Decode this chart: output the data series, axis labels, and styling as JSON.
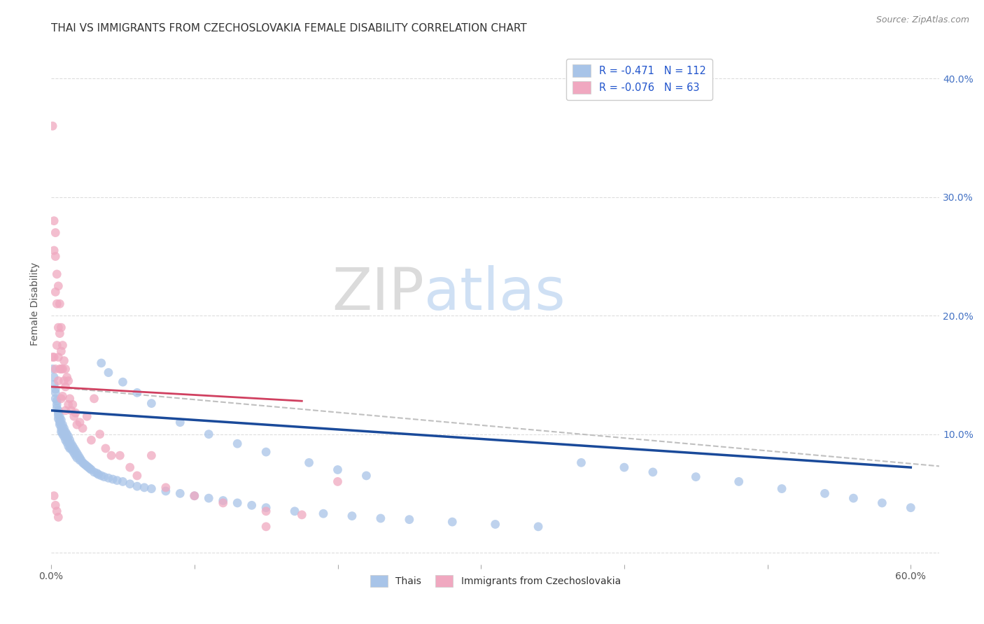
{
  "title": "THAI VS IMMIGRANTS FROM CZECHOSLOVAKIA FEMALE DISABILITY CORRELATION CHART",
  "source": "Source: ZipAtlas.com",
  "ylabel": "Female Disability",
  "xlim": [
    0.0,
    0.62
  ],
  "ylim": [
    -0.01,
    0.43
  ],
  "yticks": [
    0.0,
    0.1,
    0.2,
    0.3,
    0.4
  ],
  "ytick_labels": [
    "",
    "10.0%",
    "20.0%",
    "30.0%",
    "40.0%"
  ],
  "xticks": [
    0.0,
    0.1,
    0.2,
    0.3,
    0.4,
    0.5,
    0.6
  ],
  "xtick_labels": [
    "0.0%",
    "",
    "",
    "",
    "",
    "",
    "60.0%"
  ],
  "legend_blue_label": "R = -0.471   N = 112",
  "legend_pink_label": "R = -0.076   N = 63",
  "legend_bottom_blue": "Thais",
  "legend_bottom_pink": "Immigrants from Czechoslovakia",
  "blue_color": "#a8c4e8",
  "pink_color": "#f0a8c0",
  "trendline_blue_color": "#1a4a9a",
  "trendline_pink_color": "#d04060",
  "trendline_grey_color": "#c0c0c0",
  "watermark_zip": "ZIP",
  "watermark_atlas": "atlas",
  "title_fontsize": 11,
  "axis_label_fontsize": 10,
  "tick_fontsize": 10,
  "thai_x": [
    0.001,
    0.002,
    0.002,
    0.003,
    0.003,
    0.003,
    0.004,
    0.004,
    0.004,
    0.005,
    0.005,
    0.005,
    0.005,
    0.006,
    0.006,
    0.006,
    0.006,
    0.007,
    0.007,
    0.007,
    0.007,
    0.008,
    0.008,
    0.008,
    0.008,
    0.009,
    0.009,
    0.009,
    0.01,
    0.01,
    0.01,
    0.011,
    0.011,
    0.011,
    0.012,
    0.012,
    0.012,
    0.013,
    0.013,
    0.013,
    0.014,
    0.014,
    0.015,
    0.015,
    0.016,
    0.016,
    0.017,
    0.017,
    0.018,
    0.018,
    0.019,
    0.02,
    0.02,
    0.021,
    0.022,
    0.023,
    0.024,
    0.025,
    0.026,
    0.027,
    0.028,
    0.03,
    0.032,
    0.033,
    0.035,
    0.037,
    0.04,
    0.043,
    0.046,
    0.05,
    0.055,
    0.06,
    0.065,
    0.07,
    0.08,
    0.09,
    0.1,
    0.11,
    0.12,
    0.13,
    0.14,
    0.15,
    0.17,
    0.19,
    0.21,
    0.23,
    0.25,
    0.28,
    0.31,
    0.34,
    0.37,
    0.4,
    0.42,
    0.45,
    0.48,
    0.51,
    0.54,
    0.56,
    0.58,
    0.6,
    0.035,
    0.04,
    0.05,
    0.06,
    0.07,
    0.09,
    0.11,
    0.13,
    0.15,
    0.18,
    0.2,
    0.22
  ],
  "thai_y": [
    0.155,
    0.148,
    0.142,
    0.138,
    0.135,
    0.13,
    0.128,
    0.125,
    0.122,
    0.12,
    0.118,
    0.116,
    0.113,
    0.115,
    0.112,
    0.11,
    0.108,
    0.112,
    0.108,
    0.105,
    0.102,
    0.108,
    0.105,
    0.102,
    0.1,
    0.105,
    0.102,
    0.098,
    0.102,
    0.098,
    0.095,
    0.1,
    0.096,
    0.093,
    0.098,
    0.094,
    0.09,
    0.095,
    0.091,
    0.088,
    0.092,
    0.088,
    0.09,
    0.086,
    0.088,
    0.084,
    0.086,
    0.082,
    0.084,
    0.08,
    0.082,
    0.08,
    0.078,
    0.078,
    0.076,
    0.075,
    0.074,
    0.073,
    0.072,
    0.071,
    0.07,
    0.068,
    0.067,
    0.066,
    0.065,
    0.064,
    0.063,
    0.062,
    0.061,
    0.06,
    0.058,
    0.056,
    0.055,
    0.054,
    0.052,
    0.05,
    0.048,
    0.046,
    0.044,
    0.042,
    0.04,
    0.038,
    0.035,
    0.033,
    0.031,
    0.029,
    0.028,
    0.026,
    0.024,
    0.022,
    0.076,
    0.072,
    0.068,
    0.064,
    0.06,
    0.054,
    0.05,
    0.046,
    0.042,
    0.038,
    0.16,
    0.152,
    0.144,
    0.135,
    0.126,
    0.11,
    0.1,
    0.092,
    0.085,
    0.076,
    0.07,
    0.065
  ],
  "czech_x": [
    0.001,
    0.001,
    0.002,
    0.002,
    0.002,
    0.003,
    0.003,
    0.003,
    0.003,
    0.004,
    0.004,
    0.004,
    0.005,
    0.005,
    0.005,
    0.005,
    0.006,
    0.006,
    0.006,
    0.007,
    0.007,
    0.007,
    0.007,
    0.008,
    0.008,
    0.008,
    0.009,
    0.009,
    0.01,
    0.01,
    0.01,
    0.011,
    0.012,
    0.012,
    0.013,
    0.014,
    0.015,
    0.016,
    0.017,
    0.018,
    0.02,
    0.022,
    0.025,
    0.028,
    0.03,
    0.034,
    0.038,
    0.042,
    0.048,
    0.055,
    0.06,
    0.07,
    0.08,
    0.1,
    0.12,
    0.15,
    0.175,
    0.2,
    0.002,
    0.003,
    0.004,
    0.005,
    0.15
  ],
  "czech_y": [
    0.36,
    0.165,
    0.28,
    0.255,
    0.165,
    0.27,
    0.25,
    0.22,
    0.155,
    0.235,
    0.21,
    0.175,
    0.225,
    0.19,
    0.165,
    0.145,
    0.21,
    0.185,
    0.155,
    0.19,
    0.17,
    0.155,
    0.13,
    0.175,
    0.155,
    0.132,
    0.162,
    0.145,
    0.155,
    0.14,
    0.12,
    0.148,
    0.145,
    0.125,
    0.13,
    0.12,
    0.125,
    0.115,
    0.118,
    0.108,
    0.11,
    0.105,
    0.115,
    0.095,
    0.13,
    0.1,
    0.088,
    0.082,
    0.082,
    0.072,
    0.065,
    0.082,
    0.055,
    0.048,
    0.042,
    0.035,
    0.032,
    0.06,
    0.048,
    0.04,
    0.035,
    0.03,
    0.022
  ],
  "blue_trendline_x0": 0.0,
  "blue_trendline_y0": 0.12,
  "blue_trendline_x1": 0.6,
  "blue_trendline_y1": 0.072,
  "pink_trendline_x0": 0.0,
  "pink_trendline_y0": 0.14,
  "pink_trendline_x1": 0.175,
  "pink_trendline_y1": 0.128,
  "grey_trendline_x0": 0.0,
  "grey_trendline_y0": 0.14,
  "grey_trendline_x1": 0.62,
  "grey_trendline_y1": 0.073
}
